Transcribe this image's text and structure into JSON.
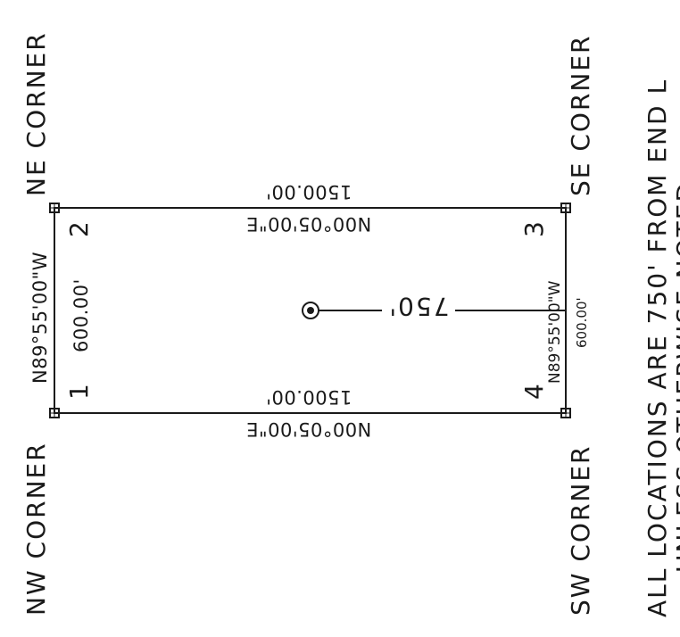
{
  "corners": {
    "nw": "NW CORNER",
    "ne": "NE CORNER",
    "sw": "SW CORNER",
    "se": "SE CORNER"
  },
  "points": {
    "p1": "1",
    "p2": "2",
    "p3": "3",
    "p4": "4"
  },
  "dimensions": {
    "west_bearing": "N89°55'00\"W",
    "west_distance": "600.00'",
    "east_bearing": "N89°55'00\"W",
    "east_distance": "600.00'",
    "north_bearing": "N00°05'00\"E",
    "north_distance": "1500.00'",
    "south_bearing": "N00°05'00\"E",
    "south_distance": "1500.00'",
    "offset_distance": "750'"
  },
  "note": {
    "line1": "ALL LOCATIONS ARE 750' FROM END L",
    "line2": "UNLESS OTHERWISE NOTED"
  }
}
